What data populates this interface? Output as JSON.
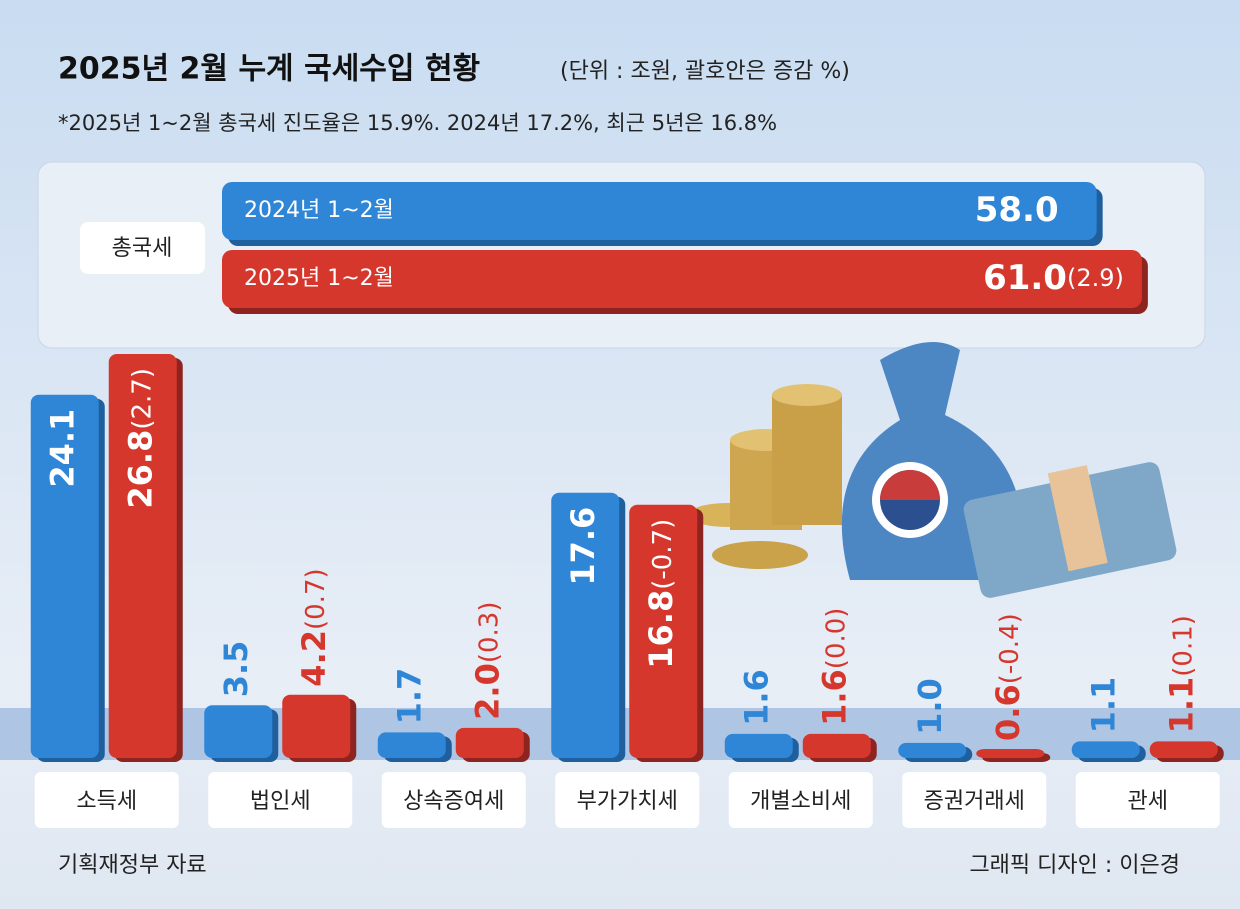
{
  "header": {
    "title": "2025년 2월 누계 국세수입 현황",
    "unit": "(단위 : 조원, 괄호안은 증감 %)",
    "note": "*2025년 1~2월 총국세 진도율은 15.9%. 2024년 17.2%, 최근 5년은 16.8%"
  },
  "chart_data": [
    {
      "type": "hbar",
      "categories": [
        "총국세"
      ],
      "xlim": [
        0,
        62
      ],
      "series": [
        {
          "name": "2024년 1~2월",
          "color": "#2f86d6",
          "values": [
            58.0
          ],
          "value_labels": [
            "58.0"
          ]
        },
        {
          "name": "2025년 1~2월",
          "color": "#d6372d",
          "values": [
            61.0
          ],
          "value_labels": [
            "61.0"
          ],
          "change_labels": [
            "(2.9)"
          ]
        }
      ]
    },
    {
      "type": "bar",
      "categories": [
        "소득세",
        "법인세",
        "상속증여세",
        "부가가치세",
        "개별소비세",
        "증권거래세",
        "관세"
      ],
      "ylim": [
        0,
        27
      ],
      "series": [
        {
          "name": "2024년 1~2월",
          "color": "#2f86d6",
          "values": [
            24.1,
            3.5,
            1.7,
            17.6,
            1.6,
            1.0,
            1.1
          ],
          "value_labels": [
            "24.1",
            "3.5",
            "1.7",
            "17.6",
            "1.6",
            "1.0",
            "1.1"
          ]
        },
        {
          "name": "2025년 1~2월",
          "color": "#d6372d",
          "values": [
            26.8,
            4.2,
            2.0,
            16.8,
            1.6,
            0.6,
            1.1
          ],
          "value_labels": [
            "26.8",
            "4.2",
            "2.0",
            "16.8",
            "1.6",
            "0.6",
            "1.1"
          ],
          "change_labels": [
            "(2.7)",
            "(0.7)",
            "(0.3)",
            "(-0.7)",
            "(0.0)",
            "(-0.4)",
            "(0.1)"
          ]
        }
      ]
    }
  ],
  "footer": {
    "source": "기획재정부 자료",
    "credit": "그래픽 디자인 : 이은경"
  }
}
